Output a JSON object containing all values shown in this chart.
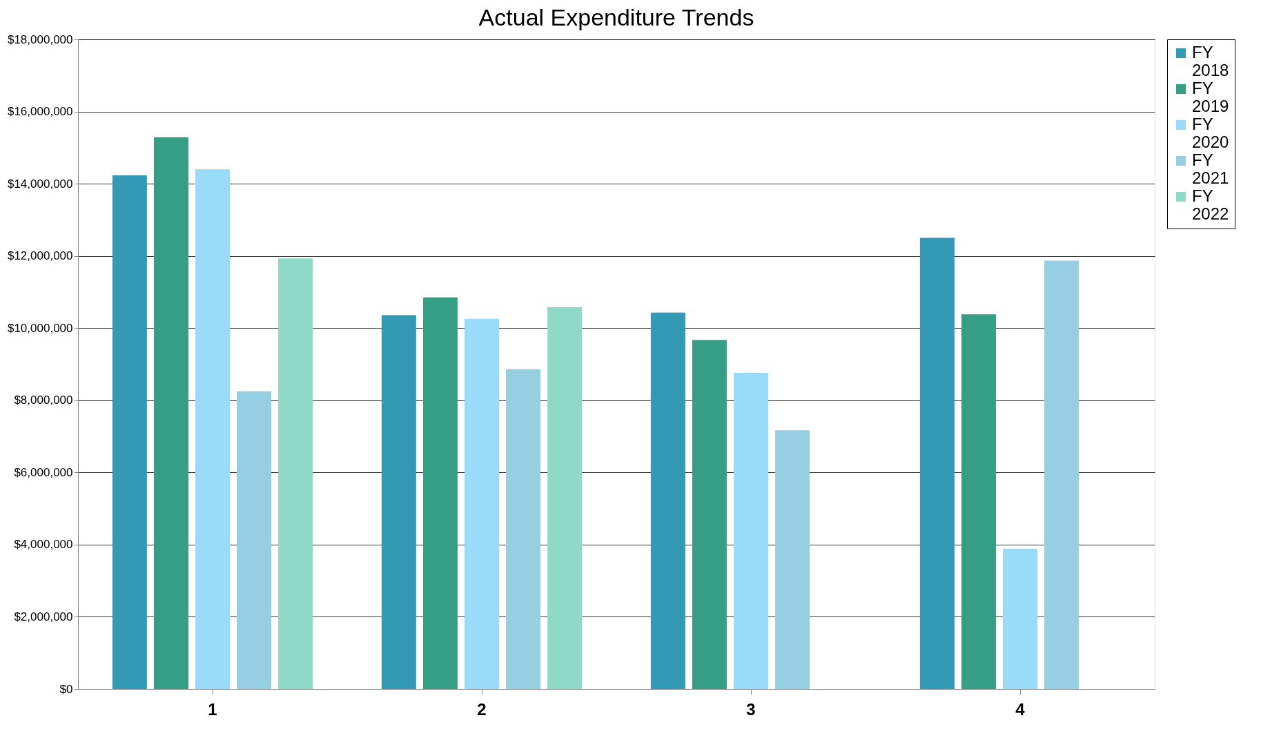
{
  "chart_data": {
    "type": "bar",
    "title": "Actual Expenditure Trends",
    "categories": [
      "1",
      "2",
      "3",
      "4"
    ],
    "series": [
      {
        "name": "FY 2018",
        "color": "#3399b5",
        "values": [
          14230000,
          10360000,
          10430000,
          12500000
        ]
      },
      {
        "name": "FY 2019",
        "color": "#359e84",
        "values": [
          15290000,
          10850000,
          9670000,
          10380000
        ]
      },
      {
        "name": "FY 2020",
        "color": "#99dbf8",
        "values": [
          14400000,
          10260000,
          8760000,
          3890000
        ]
      },
      {
        "name": "FY 2021",
        "color": "#96cfe1",
        "values": [
          8250000,
          8860000,
          7170000,
          11870000
        ]
      },
      {
        "name": "FY 2022",
        "color": "#8fd9c7",
        "values": [
          11930000,
          10580000,
          null,
          null
        ]
      }
    ],
    "ylim": [
      0,
      18000000
    ],
    "yticks": [
      {
        "value": 0,
        "label": "$0"
      },
      {
        "value": 2000000,
        "label": "$2,000,000"
      },
      {
        "value": 4000000,
        "label": "$4,000,000"
      },
      {
        "value": 6000000,
        "label": "$6,000,000"
      },
      {
        "value": 8000000,
        "label": "$8,000,000"
      },
      {
        "value": 10000000,
        "label": "$10,000,000"
      },
      {
        "value": 12000000,
        "label": "$12,000,000"
      },
      {
        "value": 14000000,
        "label": "$14,000,000"
      },
      {
        "value": 16000000,
        "label": "$16,000,000"
      },
      {
        "value": 18000000,
        "label": "$18,000,000"
      }
    ],
    "grid": "y",
    "legend": "right"
  }
}
